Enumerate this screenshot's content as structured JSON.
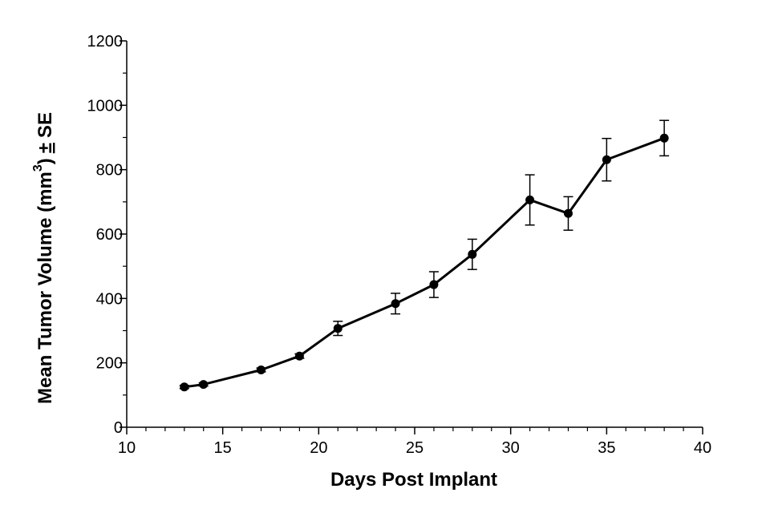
{
  "chart_data": {
    "type": "line",
    "title": "",
    "xlabel": "Days Post Implant",
    "ylabel": {
      "main": "Mean Tumor Volume (mm",
      "superscript": "3",
      "close": ")",
      "pm": "±",
      "suffix": "SE"
    },
    "xlim": [
      10,
      40
    ],
    "ylim": [
      0,
      1200
    ],
    "x_ticks": [
      "10",
      "15",
      "20",
      "25",
      "30",
      "35",
      "40"
    ],
    "y_ticks": [
      "0",
      "200",
      "400",
      "600",
      "800",
      "1000",
      "1200"
    ],
    "x_minor_step": 1,
    "y_minor_step": 100,
    "grid": false,
    "legend": "none",
    "series": [
      {
        "color": "#000000",
        "marker": "filled-circle",
        "points": [
          {
            "x": 13,
            "y": 125,
            "err": 5
          },
          {
            "x": 14,
            "y": 133,
            "err": 5
          },
          {
            "x": 17,
            "y": 178,
            "err": 6
          },
          {
            "x": 19,
            "y": 221,
            "err": 7
          },
          {
            "x": 21,
            "y": 307,
            "err": 22
          },
          {
            "x": 24,
            "y": 384,
            "err": 32
          },
          {
            "x": 26,
            "y": 443,
            "err": 40
          },
          {
            "x": 28,
            "y": 537,
            "err": 47
          },
          {
            "x": 31,
            "y": 706,
            "err": 78
          },
          {
            "x": 33,
            "y": 664,
            "err": 52
          },
          {
            "x": 35,
            "y": 831,
            "err": 66
          },
          {
            "x": 38,
            "y": 898,
            "err": 55
          }
        ]
      }
    ]
  }
}
